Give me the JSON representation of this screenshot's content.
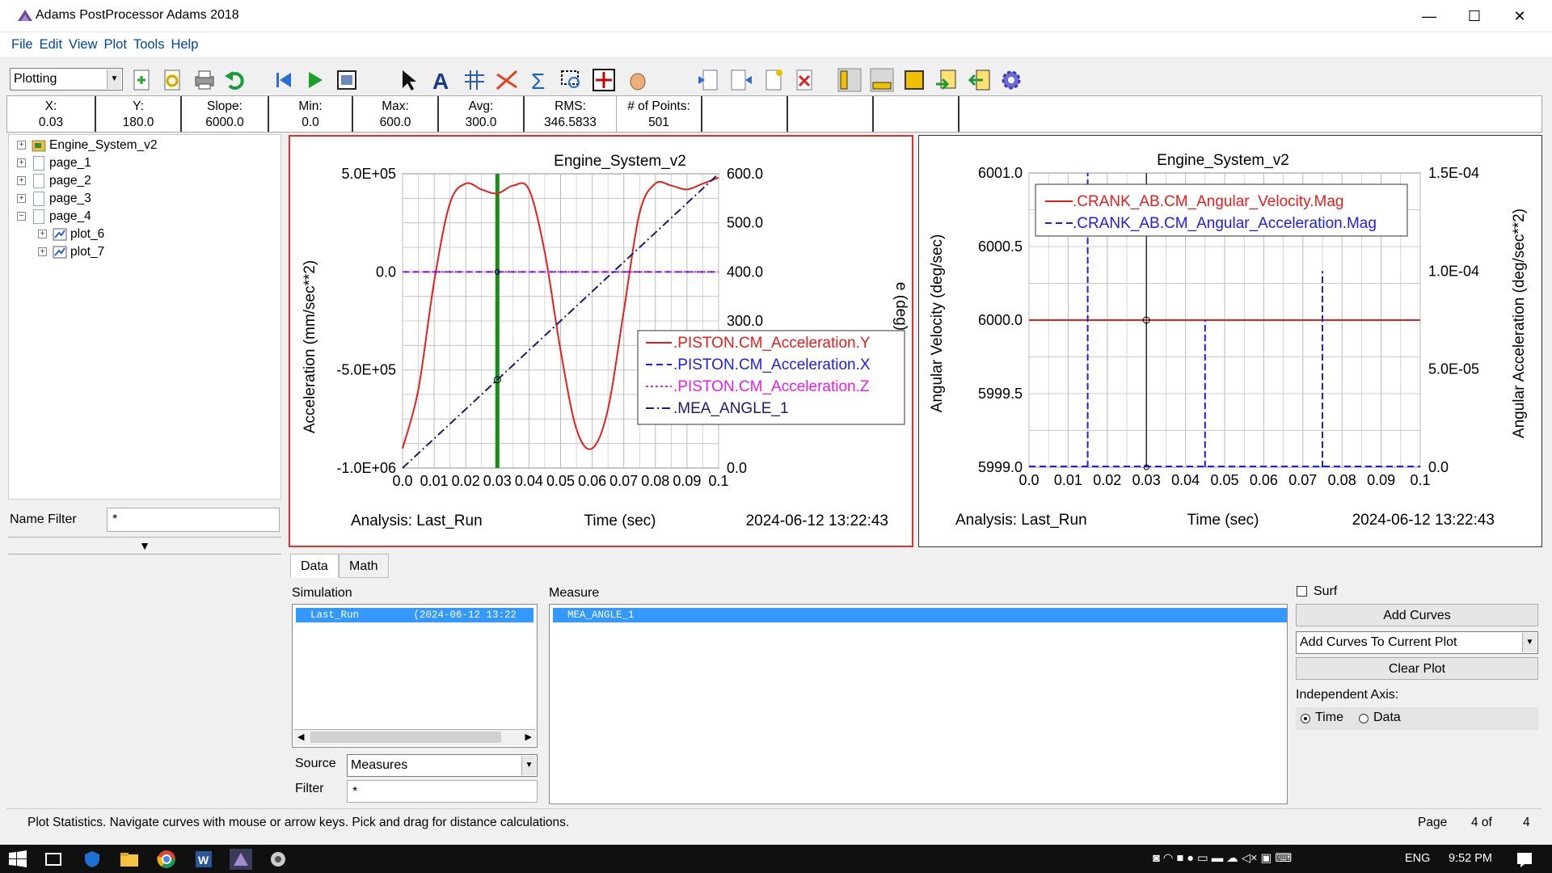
{
  "window": {
    "title": "Adams PostProcessor Adams 2018",
    "minimize": "—",
    "maximize": "☐",
    "close": "✕"
  },
  "menu": [
    "File",
    "Edit",
    "View",
    "Plot",
    "Tools",
    "Help"
  ],
  "toolbar": {
    "mode_value": "Plotting"
  },
  "stats": [
    {
      "label": "X:",
      "value": "0.03"
    },
    {
      "label": "Y:",
      "value": "180.0"
    },
    {
      "label": "Slope:",
      "value": "6000.0"
    },
    {
      "label": "Min:",
      "value": "0.0"
    },
    {
      "label": "Max:",
      "value": "600.0"
    },
    {
      "label": "Avg:",
      "value": "300.0"
    },
    {
      "label": "RMS:",
      "value": "346.5833"
    },
    {
      "label": "# of Points:",
      "value": "501"
    }
  ],
  "tree": {
    "root": "Engine_System_v2",
    "pages": [
      "page_1",
      "page_2",
      "page_3",
      "page_4"
    ],
    "plots": [
      "plot_6",
      "plot_7"
    ]
  },
  "name_filter": {
    "label": "Name Filter",
    "value": "*"
  },
  "plot_left": {
    "title": "Engine_System_v2",
    "ylabel": "Acceleration (mm/sec**2)",
    "y2label_fragment": "e (deg)",
    "xlabel": "Time (sec)",
    "analysis": "Analysis:  Last_Run",
    "timestamp": "2024-06-12 13:22:43",
    "xticks": [
      "0.0",
      "0.01",
      "0.02",
      "0.03",
      "0.04",
      "0.05",
      "0.06",
      "0.07",
      "0.08",
      "0.09",
      "0.1"
    ],
    "yticks": [
      "5.0E+05",
      "0.0",
      "-5.0E+05",
      "-1.0E+06"
    ],
    "y2ticks": [
      "600.0",
      "500.0",
      "400.0",
      "300.0",
      "0.0"
    ],
    "legend": [
      {
        "name": ".PISTON.CM_Acceleration.Y",
        "color": "#e61e1e"
      },
      {
        "name": ".PISTON.CM_Acceleration.X",
        "color": "#1e1ee6"
      },
      {
        "name": ".PISTON.CM_Acceleration.Z",
        "color": "#e61ee6"
      },
      {
        "name": ".MEA_ANGLE_1",
        "color": "#1a1a6e"
      }
    ]
  },
  "plot_right": {
    "title": "Engine_System_v2",
    "ylabel": "Angular Velocity (deg/sec)",
    "y2label": "Angular Acceleration (deg/sec**2)",
    "xlabel": "Time (sec)",
    "analysis": "Analysis:  Last_Run",
    "timestamp": "2024-06-12 13:22:43",
    "xticks": [
      "0.0",
      "0.01",
      "0.02",
      "0.03",
      "0.04",
      "0.05",
      "0.06",
      "0.07",
      "0.08",
      "0.09",
      "0.1"
    ],
    "yticks": [
      "6001.0",
      "6000.5",
      "6000.0",
      "5999.5",
      "5999.0"
    ],
    "y2ticks": [
      "1.5E-04",
      "1.0E-04",
      "5.0E-05",
      "0.0"
    ],
    "legend": [
      {
        "name": ".CRANK_AB.CM_Angular_Velocity.Mag",
        "color": "#e61e1e"
      },
      {
        "name": ".CRANK_AB.CM_Angular_Acceleration.Mag",
        "color": "#1e1ee6"
      }
    ]
  },
  "chart_data": [
    {
      "type": "line",
      "title": "Engine_System_v2",
      "xlabel": "Time (sec)",
      "ylabel": "Acceleration (mm/sec**2)",
      "xlim": [
        0,
        0.1
      ],
      "ylim": [
        -1000000,
        500000
      ],
      "y2lim": [
        0,
        600
      ],
      "x": [
        0.0,
        0.005,
        0.01,
        0.015,
        0.02,
        0.025,
        0.03,
        0.035,
        0.04,
        0.045,
        0.05,
        0.055,
        0.06,
        0.065,
        0.07,
        0.075,
        0.08,
        0.085,
        0.09,
        0.095,
        0.1
      ],
      "series": [
        {
          "name": ".PISTON.CM_Acceleration.Y",
          "values": [
            -900000,
            -600000,
            -50000,
            350000,
            450000,
            420000,
            400000,
            440000,
            420000,
            100000,
            -400000,
            -800000,
            -900000,
            -700000,
            -200000,
            300000,
            450000,
            440000,
            420000,
            450000,
            480000
          ]
        },
        {
          "name": ".PISTON.CM_Acceleration.X",
          "values": [
            0,
            0,
            0,
            0,
            0,
            0,
            0,
            0,
            0,
            0,
            0,
            0,
            0,
            0,
            0,
            0,
            0,
            0,
            0,
            0,
            0
          ]
        },
        {
          "name": ".PISTON.CM_Acceleration.Z",
          "values": [
            0,
            0,
            0,
            0,
            0,
            0,
            0,
            0,
            0,
            0,
            0,
            0,
            0,
            0,
            0,
            0,
            0,
            0,
            0,
            0,
            0
          ]
        },
        {
          "name": ".MEA_ANGLE_1",
          "axis": "y2",
          "values": [
            0,
            30,
            60,
            90,
            120,
            150,
            180,
            210,
            240,
            270,
            300,
            330,
            360,
            390,
            420,
            450,
            480,
            510,
            540,
            570,
            600
          ]
        }
      ],
      "cursor_x": 0.03
    },
    {
      "type": "line",
      "title": "Engine_System_v2",
      "xlabel": "Time (sec)",
      "ylabel": "Angular Velocity (deg/sec)",
      "xlim": [
        0,
        0.1
      ],
      "ylim": [
        5999.0,
        6001.0
      ],
      "y2lim": [
        0,
        0.00015
      ],
      "series": [
        {
          "name": ".CRANK_AB.CM_Angular_Velocity.Mag",
          "x": [
            0,
            0.1
          ],
          "values": [
            6000.0,
            6000.0
          ]
        },
        {
          "name": ".CRANK_AB.CM_Angular_Acceleration.Mag",
          "axis": "y2",
          "spikes": [
            {
              "x": 0.015,
              "value": 0.00015
            },
            {
              "x": 0.045,
              "value": 7.5e-05
            },
            {
              "x": 0.075,
              "value": 0.0001
            }
          ]
        }
      ],
      "cursor_x": 0.03
    }
  ],
  "tabs": [
    "Data",
    "Math"
  ],
  "data_panel": {
    "simulation_label": "Simulation",
    "simulation_row": "Last_Run         (2024-06-12 13:22",
    "measure_label": "Measure",
    "measure_row": "MEA_ANGLE_1",
    "source_label": "Source",
    "source_value": "Measures",
    "filter_label": "Filter",
    "filter_value": "*",
    "surf_label": "Surf",
    "add_curves": "Add Curves",
    "add_mode": "Add Curves To Current Plot",
    "clear_plot": "Clear Plot",
    "indep_axis_label": "Independent Axis:",
    "radio_time": "Time",
    "radio_data": "Data"
  },
  "status": {
    "message": "Plot Statistics.  Navigate curves with mouse or arrow keys.  Pick and drag for distance calculations.",
    "page_label": "Page",
    "page_current": "4 of",
    "page_total": "4"
  },
  "taskbar": {
    "lang": "ENG",
    "time": "9:52 PM"
  }
}
